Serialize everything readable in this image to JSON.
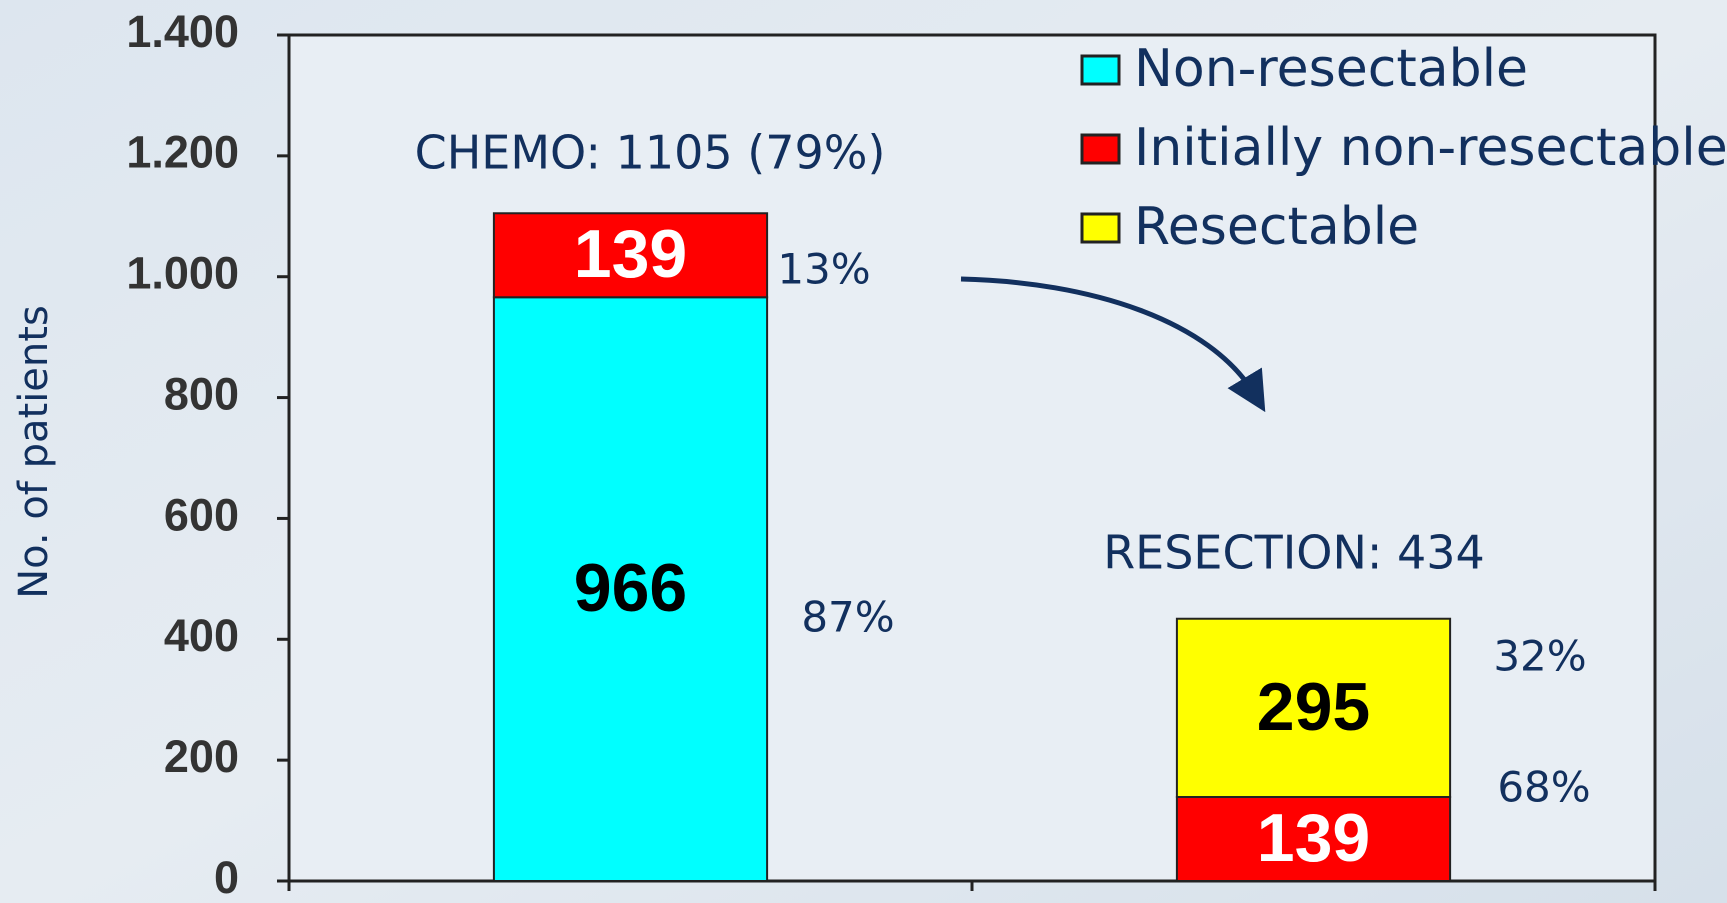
{
  "chart_data": {
    "type": "stacked_bar",
    "y_label": "No. of patients",
    "categories": [
      null,
      null
    ],
    "series": [
      {
        "name": "Non-resectable",
        "color": "#00ffff",
        "values": [
          966,
          null
        ]
      },
      {
        "name": "Initially non-resectable",
        "color": "#ff0000",
        "values": [
          139,
          139
        ]
      },
      {
        "name": "Resectable",
        "color": "#ffff00",
        "values": [
          null,
          295
        ]
      }
    ],
    "ylim": [
      0,
      1400
    ],
    "yticks": [
      0,
      200,
      400,
      600,
      800,
      {
        "value": 1000,
        "label": "1.000"
      },
      {
        "value": 1200,
        "label": "1.200"
      },
      {
        "value": 1400,
        "label": "1.400"
      }
    ],
    "annotations": [
      "CHEMO: 1105 (79%)",
      "RESECTION: 434",
      "13%",
      "87%",
      "32%",
      "68%"
    ],
    "legend": "top-right"
  }
}
